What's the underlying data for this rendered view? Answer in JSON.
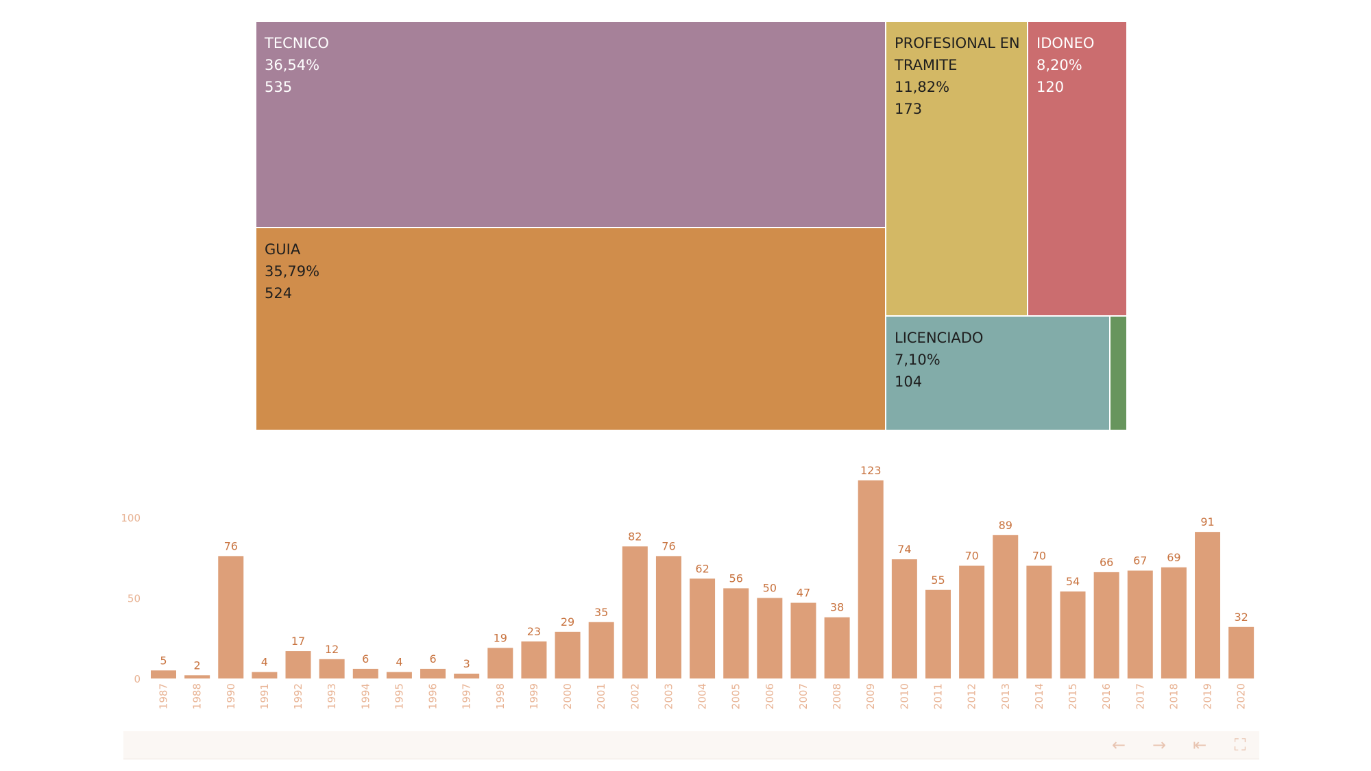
{
  "treemap": {
    "tiles": [
      {
        "name": "TECNICO",
        "pct": "36,54%",
        "count": "535",
        "color": "#a68199",
        "textColor": "#ffffff"
      },
      {
        "name": "GUIA",
        "pct": "35,79%",
        "count": "524",
        "color": "#d08d4b",
        "textColor": "#1e1e1e"
      },
      {
        "name": "PROFESIONAL EN TRAMITE",
        "line1": "PROFESIONAL EN",
        "line2": "TRAMITE",
        "pct": "11,82%",
        "count": "173",
        "color": "#d3b865",
        "textColor": "#1e1e1e"
      },
      {
        "name": "IDONEO",
        "pct": "8,20%",
        "count": "120",
        "color": "#cb6d6f",
        "textColor": "#ffffff"
      },
      {
        "name": "LICENCIADO",
        "pct": "7,10%",
        "count": "104",
        "color": "#82aca9",
        "textColor": "#1e1e1e"
      },
      {
        "name": "",
        "pct": "",
        "count": "",
        "color": "#67955d",
        "textColor": "#ffffff"
      }
    ]
  },
  "chart_data": [
    {
      "type": "treemap",
      "categories": [
        "TECNICO",
        "GUIA",
        "PROFESIONAL EN TRAMITE",
        "IDONEO",
        "LICENCIADO"
      ],
      "values": [
        535,
        524,
        173,
        120,
        104
      ],
      "percentages": [
        "36,54%",
        "35,79%",
        "11,82%",
        "8,20%",
        "7,10%"
      ]
    },
    {
      "type": "bar",
      "categories": [
        "1987",
        "1988",
        "1990",
        "1991",
        "1992",
        "1993",
        "1994",
        "1995",
        "1996",
        "1997",
        "1998",
        "1999",
        "2000",
        "2001",
        "2002",
        "2003",
        "2004",
        "2005",
        "2006",
        "2007",
        "2008",
        "2009",
        "2010",
        "2011",
        "2012",
        "2013",
        "2014",
        "2015",
        "2016",
        "2017",
        "2018",
        "2019",
        "2020"
      ],
      "values": [
        5,
        2,
        76,
        4,
        17,
        12,
        6,
        4,
        6,
        3,
        19,
        23,
        29,
        35,
        82,
        76,
        62,
        56,
        50,
        47,
        38,
        123,
        74,
        55,
        70,
        89,
        70,
        54,
        66,
        67,
        69,
        91,
        32
      ],
      "yticks": [
        "100",
        "50",
        "0"
      ],
      "ylim": [
        0,
        123
      ],
      "grid": false,
      "bar_color": "#dd9f79",
      "label_color": "#c8733f",
      "axis_color": "#e8b394"
    }
  ],
  "toolbar": {
    "back_icon": "←",
    "forward_icon": "→",
    "reset_icon": "⇤",
    "fullscreen_icon": "⛶"
  }
}
